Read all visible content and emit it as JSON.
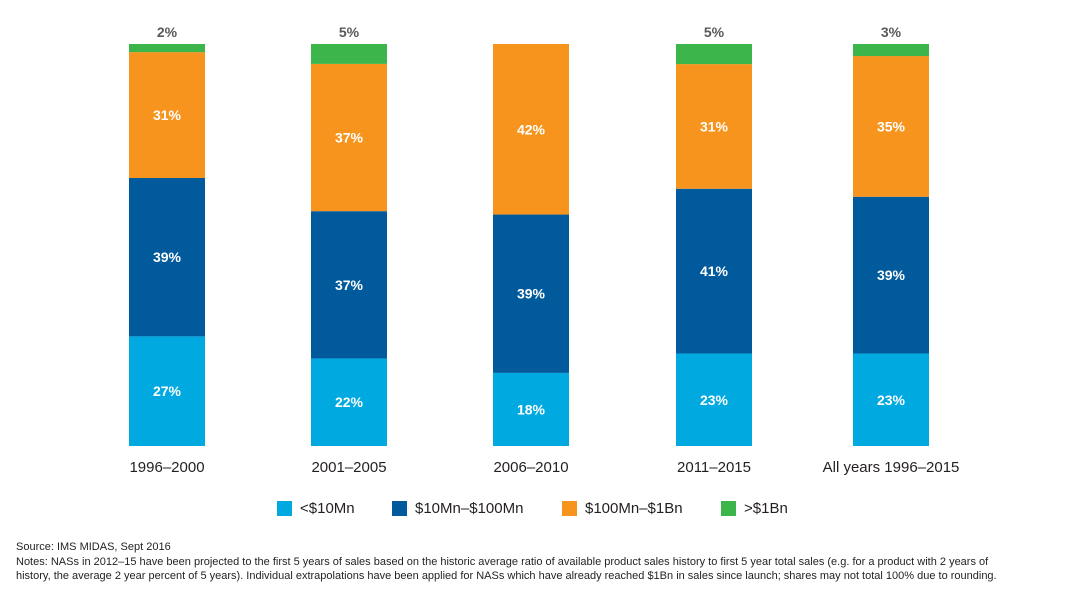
{
  "chart_data": {
    "type": "bar",
    "stacked": true,
    "normalized": true,
    "categories": [
      "1996–2000",
      "2001–2005",
      "2006–2010",
      "2011–2015",
      "All years 1996–2015"
    ],
    "series": [
      {
        "name": "<$10Mn",
        "color": "#00a9e0",
        "values": [
          27,
          22,
          18,
          23,
          23
        ],
        "labels": [
          "27%",
          "22%",
          "18%",
          "23%",
          "23%"
        ]
      },
      {
        "name": "$10Mn–$100Mn",
        "color": "#005a9c",
        "values": [
          39,
          37,
          39,
          41,
          39
        ],
        "labels": [
          "39%",
          "37%",
          "39%",
          "41%",
          "39%"
        ]
      },
      {
        "name": "$100Mn–$1Bn",
        "color": "#f7941d",
        "values": [
          31,
          37,
          42,
          31,
          35
        ],
        "labels": [
          "31%",
          "37%",
          "42%",
          "31%",
          "35%"
        ]
      },
      {
        "name": ">$1Bn",
        "color": "#3cb54a",
        "values": [
          2,
          5,
          0,
          5,
          3
        ],
        "labels": [
          "2%",
          "5%",
          "",
          "5%",
          "3%"
        ]
      }
    ],
    "ylim": [
      0,
      100
    ],
    "legend_position": "bottom"
  },
  "source": "Source: IMS MIDAS, Sept 2016",
  "notes": [
    "Notes: NASs in 2012–15 have been projected to the first 5 years of sales based on the historic average ratio of available product sales history to first 5 year total sales (e.g. for a product with 2 years of",
    "history, the average 2 year percent of 5 years). Individual extrapolations have been applied for NASs which have already reached $1Bn in sales since launch; shares may not total 100% due to rounding."
  ]
}
